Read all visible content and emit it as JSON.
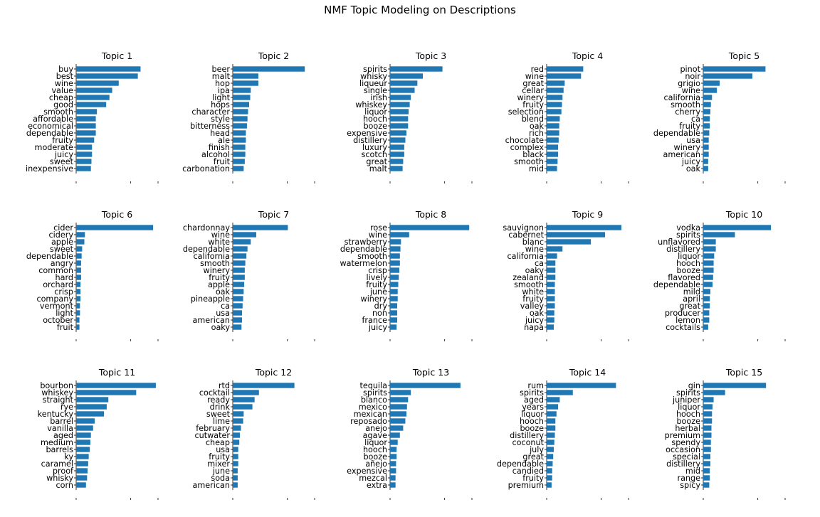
{
  "figure_title": "NMF Topic Modeling on Descriptions",
  "colors": {
    "bar": "#1f77b4",
    "axis": "#000000",
    "background": "#ffffff"
  },
  "chart_data": [
    {
      "type": "bar",
      "orientation": "horizontal",
      "title": "Topic 1",
      "xlim": [
        0,
        1.5
      ],
      "categories": [
        "buy",
        "best",
        "wine",
        "value",
        "cheap",
        "good",
        "smooth",
        "affordable",
        "economical",
        "dependable",
        "fruity",
        "moderate",
        "juicy",
        "sweet",
        "inexpensive"
      ],
      "values": [
        1.18,
        1.13,
        0.78,
        0.66,
        0.61,
        0.55,
        0.38,
        0.36,
        0.36,
        0.36,
        0.33,
        0.29,
        0.29,
        0.28,
        0.27
      ]
    },
    {
      "type": "bar",
      "orientation": "horizontal",
      "title": "Topic 2",
      "xlim": [
        0,
        1.5
      ],
      "categories": [
        "beer",
        "malt",
        "hop",
        "ipa",
        "light",
        "hops",
        "character",
        "style",
        "bitterness",
        "head",
        "ale",
        "finish",
        "alcohol",
        "fruit",
        "carbonation"
      ],
      "values": [
        1.32,
        0.47,
        0.47,
        0.33,
        0.32,
        0.3,
        0.28,
        0.27,
        0.26,
        0.24,
        0.24,
        0.23,
        0.23,
        0.22,
        0.2
      ]
    },
    {
      "type": "bar",
      "orientation": "horizontal",
      "title": "Topic 3",
      "xlim": [
        0,
        1.5
      ],
      "categories": [
        "spirits",
        "whisky",
        "liqueur",
        "single",
        "irish",
        "whiskey",
        "liquor",
        "hooch",
        "booze",
        "expensive",
        "distillery",
        "luxury",
        "scotch",
        "great",
        "malt"
      ],
      "values": [
        0.96,
        0.6,
        0.5,
        0.45,
        0.38,
        0.36,
        0.34,
        0.33,
        0.33,
        0.3,
        0.28,
        0.26,
        0.26,
        0.24,
        0.23
      ]
    },
    {
      "type": "bar",
      "orientation": "horizontal",
      "title": "Topic 4",
      "xlim": [
        0,
        1.5
      ],
      "categories": [
        "red",
        "wine",
        "great",
        "cellar",
        "winery",
        "fruity",
        "selection",
        "blend",
        "oak",
        "rich",
        "chocolate",
        "complex",
        "black",
        "smooth",
        "mid"
      ],
      "values": [
        0.67,
        0.63,
        0.33,
        0.31,
        0.29,
        0.28,
        0.27,
        0.24,
        0.23,
        0.23,
        0.22,
        0.21,
        0.21,
        0.2,
        0.19
      ]
    },
    {
      "type": "bar",
      "orientation": "horizontal",
      "title": "Topic 5",
      "xlim": [
        0,
        1.5
      ],
      "categories": [
        "pinot",
        "noir",
        "grigio",
        "wine",
        "california",
        "smooth",
        "cherry",
        "ca",
        "fruity",
        "dependable",
        "usa",
        "winery",
        "american",
        "juicy",
        "oak"
      ],
      "values": [
        1.14,
        0.9,
        0.3,
        0.25,
        0.16,
        0.14,
        0.13,
        0.12,
        0.12,
        0.11,
        0.1,
        0.1,
        0.1,
        0.09,
        0.09
      ]
    },
    {
      "type": "bar",
      "orientation": "horizontal",
      "title": "Topic 6",
      "xlim": [
        0,
        1.5
      ],
      "categories": [
        "cider",
        "cidery",
        "apple",
        "sweet",
        "dependable",
        "angry",
        "common",
        "hard",
        "orchard",
        "crisp",
        "company",
        "vermont",
        "light",
        "october",
        "fruit"
      ],
      "values": [
        1.41,
        0.16,
        0.15,
        0.11,
        0.1,
        0.09,
        0.09,
        0.09,
        0.08,
        0.08,
        0.08,
        0.07,
        0.07,
        0.06,
        0.06
      ]
    },
    {
      "type": "bar",
      "orientation": "horizontal",
      "title": "Topic 7",
      "xlim": [
        0,
        1.5
      ],
      "categories": [
        "chardonnay",
        "wine",
        "white",
        "dependable",
        "california",
        "smooth",
        "winery",
        "fruity",
        "apple",
        "oak",
        "pineapple",
        "ca",
        "usa",
        "american",
        "oaky"
      ],
      "values": [
        1.01,
        0.43,
        0.33,
        0.27,
        0.25,
        0.23,
        0.22,
        0.22,
        0.21,
        0.2,
        0.19,
        0.18,
        0.17,
        0.17,
        0.16
      ]
    },
    {
      "type": "bar",
      "orientation": "horizontal",
      "title": "Topic 8",
      "xlim": [
        0,
        1.5
      ],
      "categories": [
        "rose",
        "wine",
        "strawberry",
        "dependable",
        "smooth",
        "watermelon",
        "crisp",
        "lively",
        "fruity",
        "june",
        "winery",
        "dry",
        "non",
        "france",
        "juicy"
      ],
      "values": [
        1.45,
        0.35,
        0.2,
        0.19,
        0.18,
        0.18,
        0.17,
        0.16,
        0.15,
        0.14,
        0.14,
        0.13,
        0.13,
        0.13,
        0.12
      ]
    },
    {
      "type": "bar",
      "orientation": "horizontal",
      "title": "Topic 9",
      "xlim": [
        0,
        1.5
      ],
      "categories": [
        "sauvignon",
        "cabernet",
        "blanc",
        "wine",
        "california",
        "ca",
        "oaky",
        "zealand",
        "smooth",
        "white",
        "fruity",
        "valley",
        "oak",
        "juicy",
        "napa"
      ],
      "values": [
        1.37,
        1.07,
        0.81,
        0.29,
        0.19,
        0.16,
        0.16,
        0.16,
        0.15,
        0.15,
        0.15,
        0.15,
        0.14,
        0.14,
        0.13
      ]
    },
    {
      "type": "bar",
      "orientation": "horizontal",
      "title": "Topic 10",
      "xlim": [
        0,
        1.5
      ],
      "categories": [
        "vodka",
        "spirits",
        "unflavored",
        "distillery",
        "liquor",
        "hooch",
        "booze",
        "flavored",
        "dependable",
        "mild",
        "april",
        "great",
        "producer",
        "lemon",
        "cocktails"
      ],
      "values": [
        1.24,
        0.58,
        0.23,
        0.23,
        0.2,
        0.19,
        0.19,
        0.18,
        0.17,
        0.13,
        0.12,
        0.12,
        0.11,
        0.11,
        0.09
      ]
    },
    {
      "type": "bar",
      "orientation": "horizontal",
      "title": "Topic 11",
      "xlim": [
        0,
        1.5
      ],
      "categories": [
        "bourbon",
        "whiskey",
        "straight",
        "rye",
        "kentucky",
        "barrel",
        "vanilla",
        "aged",
        "medium",
        "barrels",
        "ky",
        "caramel",
        "proof",
        "whisky",
        "corn"
      ],
      "values": [
        1.46,
        1.1,
        0.59,
        0.56,
        0.51,
        0.34,
        0.31,
        0.27,
        0.26,
        0.25,
        0.23,
        0.22,
        0.21,
        0.2,
        0.18
      ]
    },
    {
      "type": "bar",
      "orientation": "horizontal",
      "title": "Topic 12",
      "xlim": [
        0,
        1.5
      ],
      "categories": [
        "rtd",
        "cocktail",
        "ready",
        "drink",
        "sweet",
        "lime",
        "february",
        "cutwater",
        "cheap",
        "usa",
        "fruity",
        "mixer",
        "june",
        "soda",
        "american"
      ],
      "values": [
        1.13,
        0.48,
        0.4,
        0.36,
        0.2,
        0.19,
        0.15,
        0.13,
        0.12,
        0.1,
        0.1,
        0.1,
        0.09,
        0.09,
        0.09
      ]
    },
    {
      "type": "bar",
      "orientation": "horizontal",
      "title": "Topic 13",
      "xlim": [
        0,
        1.5
      ],
      "categories": [
        "tequila",
        "spirits",
        "blanco",
        "mexico",
        "mexican",
        "reposado",
        "anejo",
        "agave",
        "liquor",
        "hooch",
        "booze",
        "añejo",
        "expensive",
        "mezcal",
        "extra"
      ],
      "values": [
        1.29,
        0.38,
        0.33,
        0.31,
        0.3,
        0.28,
        0.24,
        0.18,
        0.14,
        0.12,
        0.12,
        0.11,
        0.11,
        0.1,
        0.1
      ]
    },
    {
      "type": "bar",
      "orientation": "horizontal",
      "title": "Topic 14",
      "xlim": [
        0,
        1.5
      ],
      "categories": [
        "rum",
        "spirits",
        "aged",
        "years",
        "liquor",
        "hooch",
        "booze",
        "distillery",
        "coconut",
        "july",
        "great",
        "dependable",
        "candied",
        "fruity",
        "premium"
      ],
      "values": [
        1.27,
        0.48,
        0.24,
        0.21,
        0.18,
        0.16,
        0.16,
        0.15,
        0.14,
        0.13,
        0.12,
        0.11,
        0.1,
        0.1,
        0.09
      ]
    },
    {
      "type": "bar",
      "orientation": "horizontal",
      "title": "Topic 15",
      "xlim": [
        0,
        1.5
      ],
      "categories": [
        "gin",
        "spirits",
        "juniper",
        "liquor",
        "hooch",
        "booze",
        "herbal",
        "premium",
        "spendy",
        "occasion",
        "special",
        "distillery",
        "mid",
        "range",
        "spicy"
      ],
      "values": [
        1.15,
        0.4,
        0.19,
        0.17,
        0.16,
        0.16,
        0.15,
        0.15,
        0.14,
        0.14,
        0.13,
        0.13,
        0.12,
        0.12,
        0.11
      ]
    }
  ]
}
